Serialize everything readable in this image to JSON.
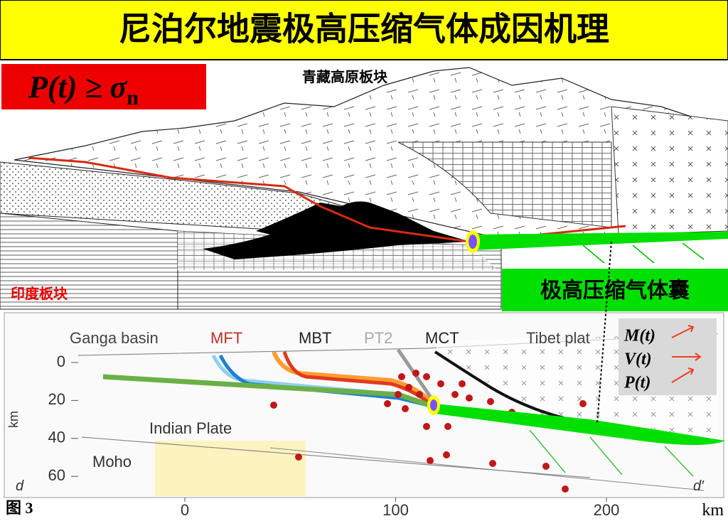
{
  "title": "尼泊尔地震极高压缩气体成因机理",
  "formula": {
    "main": "P(t) ≥ σ",
    "subscript": "n"
  },
  "block_diagram": {
    "tibet_plate": "青藏高原板块",
    "india_plate": "印度板块",
    "gas_pocket": "极高压缩气体囊"
  },
  "cross_section": {
    "top_labels": [
      "Ganga basin",
      "MFT",
      "MBT",
      "PT2",
      "MCT",
      "Tibet plat"
    ],
    "indian_plate": "Indian Plate",
    "moho": "Moho",
    "depth_label": "km",
    "depth_ticks": [
      0,
      20,
      40,
      60
    ],
    "distance_ticks": [
      0,
      100,
      200
    ],
    "distance_unit": "km",
    "d": "d",
    "d_prime": "d′",
    "legend": [
      "M(t)",
      "V(t)",
      "P(t)"
    ]
  },
  "figure_label": "图 3"
}
